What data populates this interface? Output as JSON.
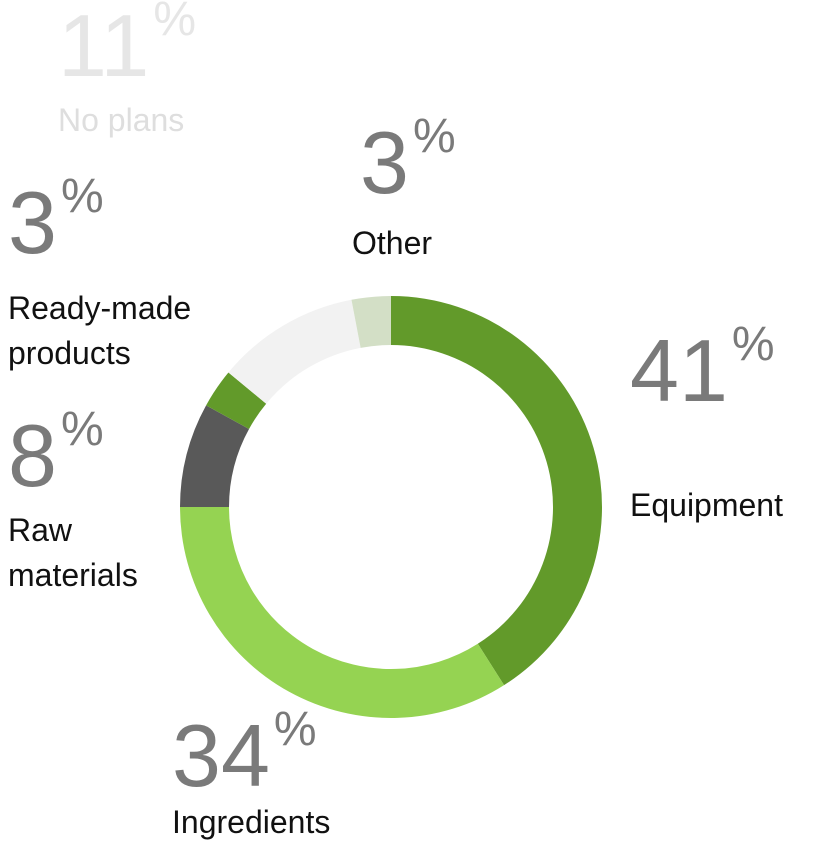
{
  "chart_data": {
    "type": "donut",
    "categories": [
      "Equipment",
      "Ingredients",
      "Raw materials",
      "Ready-made products",
      "No plans",
      "Other"
    ],
    "values": [
      41,
      34,
      8,
      3,
      11,
      3
    ],
    "unit": "%",
    "colors": [
      "#629a2a",
      "#95d352",
      "#595959",
      "#629a2a",
      "#f2f2f2",
      "#d3dfc6"
    ]
  }
}
